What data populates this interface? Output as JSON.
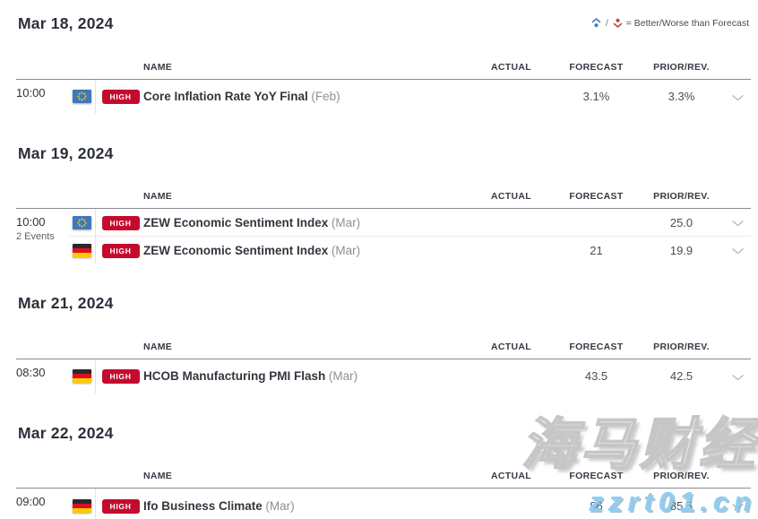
{
  "legend": {
    "better_icon": "better-than-forecast-icon",
    "worse_icon": "worse-than-forecast-icon",
    "separator": "/",
    "label": "= Better/Worse than Forecast"
  },
  "table": {
    "columns": [
      "NAME",
      "ACTUAL",
      "FORECAST",
      "PRIOR/REV."
    ]
  },
  "colors": {
    "high_badge": "#c40b2e",
    "better_blue": "#3e7fc6",
    "worse_red": "#bb4742",
    "watermark_blue": "#8fcdf1"
  },
  "sections": [
    {
      "date": "Mar 18, 2024",
      "groups": [
        {
          "time": "10:00",
          "rows": [
            {
              "flag_icon": "eu-flag",
              "importance": "HIGH",
              "name": "Core Inflation Rate YoY Final",
              "period": "(Feb)",
              "actual": "",
              "forecast": "3.1%",
              "prior": "3.3%"
            }
          ]
        }
      ]
    },
    {
      "date": "Mar 19, 2024",
      "groups": [
        {
          "time": "10:00",
          "events_label": "2 Events",
          "rows": [
            {
              "flag_icon": "eu-flag",
              "importance": "HIGH",
              "name": "ZEW Economic Sentiment Index",
              "period": "(Mar)",
              "actual": "",
              "forecast": "",
              "prior": "25.0"
            },
            {
              "flag_icon": "germany-flag",
              "importance": "HIGH",
              "name": "ZEW Economic Sentiment Index",
              "period": "(Mar)",
              "actual": "",
              "forecast": "21",
              "prior": "19.9"
            }
          ]
        }
      ]
    },
    {
      "date": "Mar 21, 2024",
      "groups": [
        {
          "time": "08:30",
          "rows": [
            {
              "flag_icon": "germany-flag",
              "importance": "HIGH",
              "name": "HCOB Manufacturing PMI Flash",
              "period": "(Mar)",
              "actual": "",
              "forecast": "43.5",
              "prior": "42.5"
            }
          ]
        }
      ]
    },
    {
      "date": "Mar 22, 2024",
      "groups": [
        {
          "time": "09:00",
          "rows": [
            {
              "flag_icon": "germany-flag",
              "importance": "HIGH",
              "name": "Ifo Business Climate",
              "period": "(Mar)",
              "actual": "",
              "forecast": "86",
              "prior": "85.5"
            }
          ]
        }
      ]
    }
  ],
  "watermark": {
    "line1": "海马财经",
    "line2": "zzrt01.cn"
  }
}
